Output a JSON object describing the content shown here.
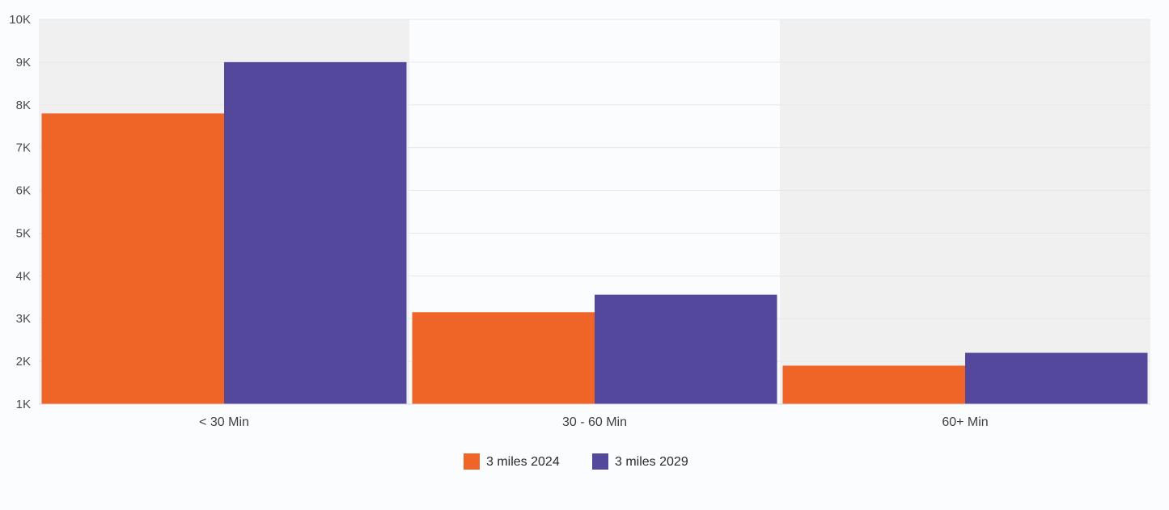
{
  "chart_data": {
    "type": "bar",
    "categories": [
      "< 30 Min",
      "30 - 60 Min",
      "60+ Min"
    ],
    "series": [
      {
        "name": "3 miles 2024",
        "color": "#ee6527",
        "values": [
          7800,
          3150,
          1900
        ]
      },
      {
        "name": "3 miles 2029",
        "color": "#54489c",
        "values": [
          9000,
          3560,
          2200
        ]
      }
    ],
    "y_ticks": [
      "1K",
      "2K",
      "3K",
      "4K",
      "5K",
      "6K",
      "7K",
      "8K",
      "9K",
      "10K"
    ],
    "ylim": [
      1000,
      10000
    ],
    "grid": true,
    "legend_position": "bottom-center",
    "alternating_band_color": "#f0f0f0"
  }
}
